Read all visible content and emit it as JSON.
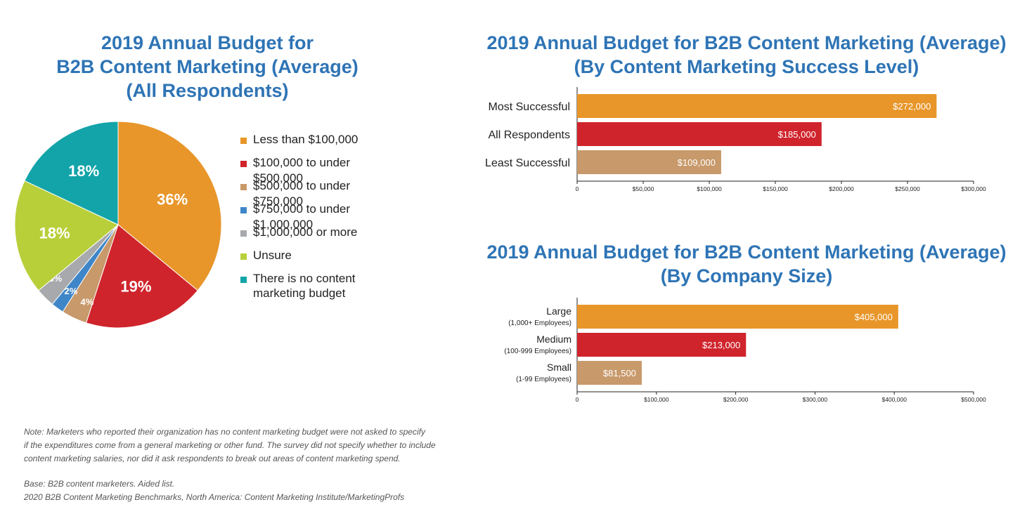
{
  "pie": {
    "title_lines": [
      "2019 Annual Budget for",
      "B2B Content Marketing (Average)",
      "(All Respondents)"
    ]
  },
  "bar_success": {
    "title_lines": [
      "2019 Annual Budget for B2B Content Marketing (Average)",
      "(By Content Marketing Success Level)"
    ]
  },
  "bar_size": {
    "title_lines": [
      "2019 Annual Budget for B2B Content Marketing (Average)",
      "(By Company Size)"
    ]
  },
  "chart_data": [
    {
      "type": "pie",
      "title": "2019 Annual Budget for B2B Content Marketing (Average) (All Respondents)",
      "slices": [
        {
          "label": "Less than $100,000",
          "value": 36,
          "display": "36%",
          "color": "#e8962a"
        },
        {
          "label": "$100,000 to under $500,000",
          "value": 19,
          "display": "19%",
          "color": "#d0242c"
        },
        {
          "label": "$500,000 to under $750,000",
          "value": 4,
          "display": "4%",
          "color": "#c8996a"
        },
        {
          "label": "$750,000 to under $1,000,000",
          "value": 2,
          "display": "2%",
          "color": "#3f86c8"
        },
        {
          "label": "$1,000,000 or more",
          "value": 3,
          "display": "3%",
          "color": "#a7a9ac"
        },
        {
          "label": "Unsure",
          "value": 18,
          "display": "18%",
          "color": "#b8cf3a"
        },
        {
          "label": "There is no content marketing budget",
          "value": 18,
          "display": "18%",
          "color": "#12a4a9"
        }
      ],
      "legend_placement": "right"
    },
    {
      "type": "bar",
      "orientation": "horizontal",
      "title": "2019 Annual Budget for B2B Content Marketing (Average) (By Content Marketing Success Level)",
      "categories": [
        "Most Successful",
        "All Respondents",
        "Least Successful"
      ],
      "sublabels": [
        "",
        "",
        ""
      ],
      "values": [
        272000,
        185000,
        109000
      ],
      "value_labels": [
        "$272,000",
        "$185,000",
        "$109,000"
      ],
      "colors": [
        "#e8962a",
        "#d0242c",
        "#c8996a"
      ],
      "xlim": [
        0,
        300000
      ],
      "xticks": [
        0,
        50000,
        100000,
        150000,
        200000,
        250000,
        300000
      ],
      "xtick_labels": [
        "0",
        "$50,000",
        "$100,000",
        "$150,000",
        "$200,000",
        "$250,000",
        "$300,000"
      ]
    },
    {
      "type": "bar",
      "orientation": "horizontal",
      "title": "2019 Annual Budget for B2B Content Marketing (Average) (By Company Size)",
      "categories": [
        "Large",
        "Medium",
        "Small"
      ],
      "sublabels": [
        "(1,000+ Employees)",
        "(100-999 Employees)",
        "(1-99 Employees)"
      ],
      "values": [
        405000,
        213000,
        81500
      ],
      "value_labels": [
        "$405,000",
        "$213,000",
        "$81,500"
      ],
      "colors": [
        "#e8962a",
        "#d0242c",
        "#c8996a"
      ],
      "xlim": [
        0,
        500000
      ],
      "xticks": [
        0,
        100000,
        200000,
        300000,
        400000,
        500000
      ],
      "xtick_labels": [
        "0",
        "$100,000",
        "$200,000",
        "$300,000",
        "$400,000",
        "$500,000"
      ]
    }
  ],
  "footer": {
    "note_lines": [
      "Note: Marketers who reported their organization has no content marketing budget were not asked to specify",
      "if the expenditures come from a general marketing or other fund. The survey did not specify whether to include",
      "content marketing salaries, nor did it ask respondents to break out areas of content marketing spend."
    ],
    "base_lines": [
      "Base: B2B content marketers. Aided list.",
      "2020 B2B Content Marketing Benchmarks, North America: Content Marketing Institute/MarketingProfs"
    ]
  }
}
